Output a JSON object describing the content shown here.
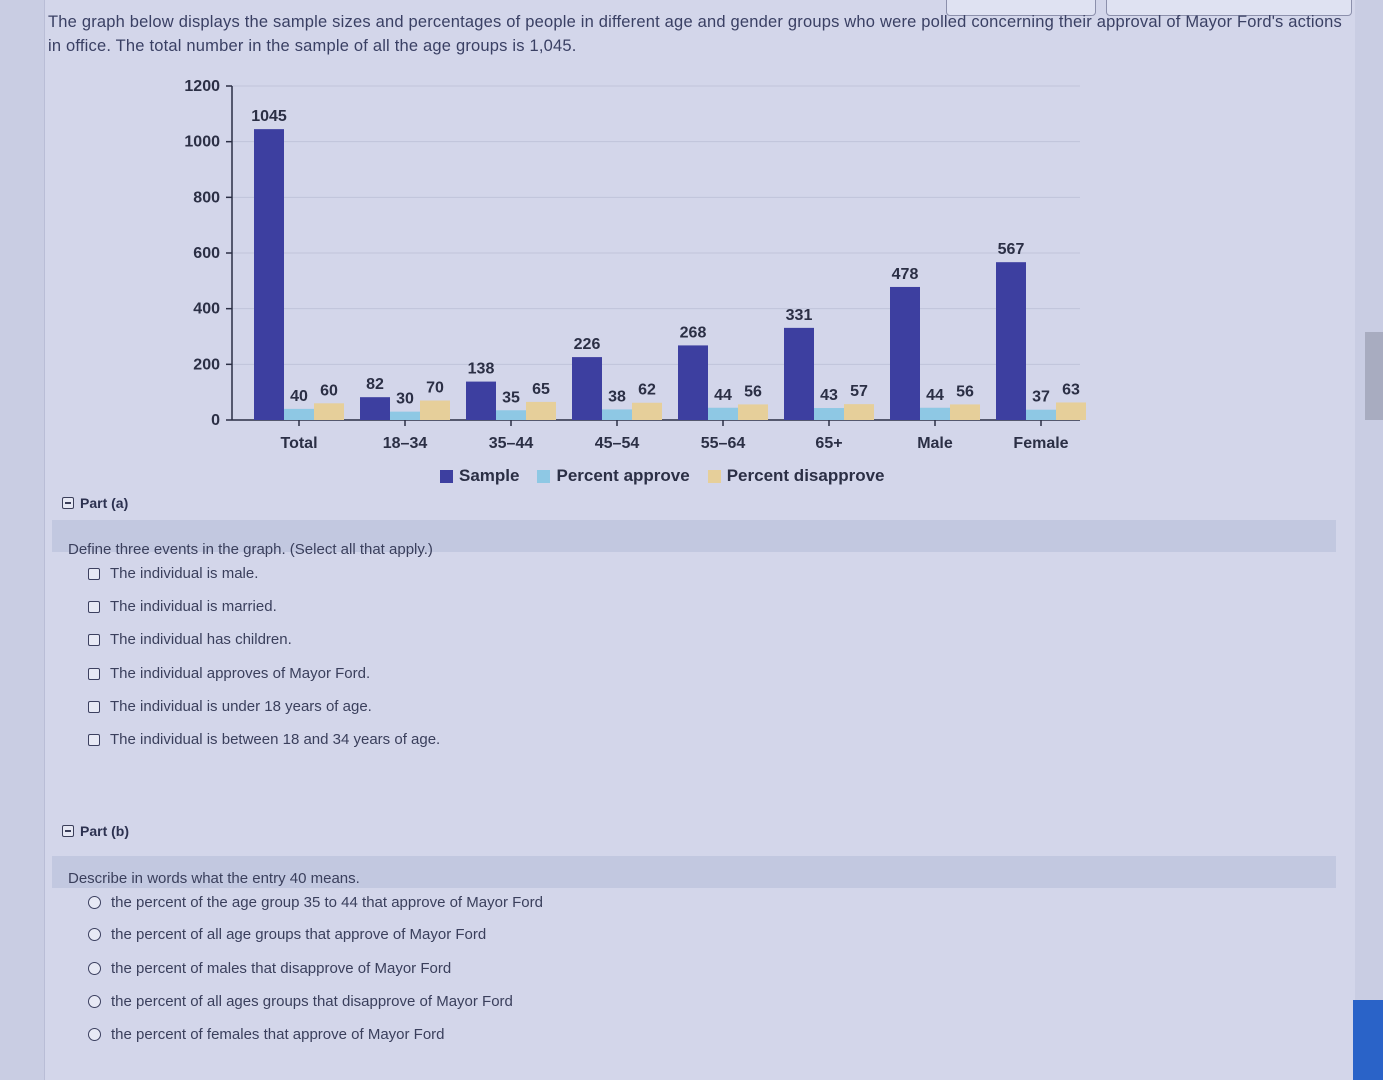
{
  "intro_text": "The graph below displays the sample sizes and percentages of people in different age and gender groups who were polled concerning their approval of Mayor Ford's actions in office. The total number in the sample of all the age groups is 1,045.",
  "chart_data": {
    "type": "bar",
    "title": "",
    "xlabel": "",
    "ylabel": "",
    "ylim": [
      0,
      1200
    ],
    "yticks": [
      "0",
      "200",
      "400",
      "600",
      "800",
      "1000",
      "1200"
    ],
    "categories": [
      "Total",
      "18–34",
      "35–44",
      "45–54",
      "55–64",
      "65+",
      "Male",
      "Female"
    ],
    "series": [
      {
        "name": "Sample",
        "values": [
          1045,
          82,
          138,
          226,
          268,
          331,
          478,
          567
        ],
        "color": "#3d3fa0"
      },
      {
        "name": "Percent approve",
        "values": [
          40,
          30,
          35,
          38,
          44,
          43,
          44,
          37
        ],
        "color": "#8ec8e4"
      },
      {
        "name": "Percent disapprove",
        "values": [
          60,
          70,
          65,
          62,
          56,
          57,
          56,
          63
        ],
        "color": "#e6cf9a"
      }
    ],
    "legend_position": "bottom",
    "grid": true
  },
  "part_a": {
    "header": "Part (a)",
    "question": "Define three events in the graph. (Select all that apply.)",
    "options": [
      "The individual is male.",
      "The individual is married.",
      "The individual has children.",
      "The individual approves of Mayor Ford.",
      "The individual is under 18 years of age.",
      "The individual is between 18 and 34 years of age."
    ]
  },
  "part_b": {
    "header": "Part (b)",
    "question": "Describe in words what the entry 40 means.",
    "options": [
      "the percent of the age group 35 to 44 that approve of Mayor Ford",
      "the percent of all age groups that approve of Mayor Ford",
      "the percent of males that disapprove of Mayor Ford",
      "the percent of all ages groups that disapprove of Mayor Ford",
      "the percent of females that approve of Mayor Ford"
    ]
  }
}
